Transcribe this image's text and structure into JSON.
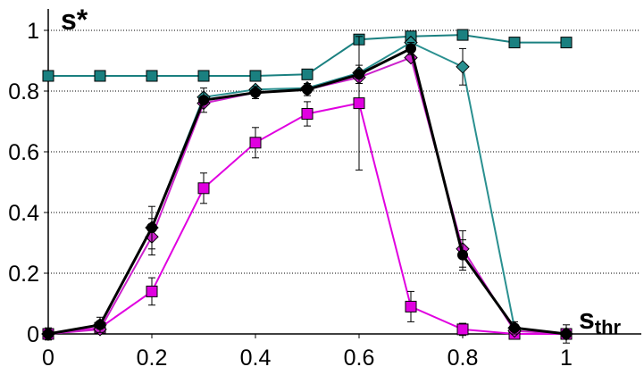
{
  "chart_data": {
    "type": "line",
    "ylabel": "s*",
    "xlabel": {
      "base": "s",
      "subscript": "thr"
    },
    "xlim": [
      0,
      1
    ],
    "ylim": [
      0,
      1
    ],
    "xticks": [
      "0",
      "0.2",
      "0.4",
      "0.6",
      "0.8",
      "1"
    ],
    "yticks": [
      "0",
      "0.2",
      "0.4",
      "0.6",
      "0.8",
      "1"
    ],
    "grid": "horizontal dotted",
    "legend": "none",
    "series": [
      {
        "color": "#1a8080",
        "marker": "square",
        "x": [
          0,
          0.1,
          0.2,
          0.3,
          0.4,
          0.5,
          0.6,
          0.7,
          0.8,
          0.9,
          1.0
        ],
        "y": [
          0.85,
          0.85,
          0.85,
          0.85,
          0.85,
          0.855,
          0.97,
          0.98,
          0.985,
          0.96,
          0.96
        ],
        "err": [
          0,
          0,
          0,
          0,
          0,
          0,
          0,
          0,
          0,
          0,
          0
        ]
      },
      {
        "color": "#2a9090",
        "marker": "diamond",
        "x": [
          0,
          0.1,
          0.2,
          0.3,
          0.4,
          0.5,
          0.6,
          0.7,
          0.8,
          0.9,
          1.0
        ],
        "y": [
          0.0,
          0.03,
          0.35,
          0.78,
          0.805,
          0.81,
          0.86,
          0.96,
          0.88,
          0.02,
          0.0
        ],
        "err": [
          0,
          0,
          0,
          0,
          0,
          0,
          0,
          0,
          0.06,
          0,
          0
        ]
      },
      {
        "color": "#e000e0",
        "marker": "square",
        "x": [
          0,
          0.1,
          0.2,
          0.3,
          0.4,
          0.5,
          0.6,
          0.7,
          0.8,
          0.9,
          1.0
        ],
        "y": [
          0.0,
          0.02,
          0.14,
          0.48,
          0.63,
          0.725,
          0.76,
          0.09,
          0.015,
          0.0,
          0.0
        ],
        "err": [
          0,
          0,
          0.045,
          0.05,
          0.05,
          0.04,
          0.22,
          0.05,
          0.02,
          0,
          0
        ]
      },
      {
        "color": "#cc22cc",
        "marker": "diamond",
        "x": [
          0,
          0.1,
          0.2,
          0.3,
          0.4,
          0.5,
          0.6,
          0.7,
          0.8,
          0.9,
          1.0
        ],
        "y": [
          0.0,
          0.015,
          0.32,
          0.76,
          0.795,
          0.805,
          0.845,
          0.91,
          0.28,
          0.01,
          0.0
        ],
        "err": [
          0,
          0,
          0.06,
          0,
          0,
          0,
          0,
          0,
          0.06,
          0,
          0
        ]
      },
      {
        "color": "#000000",
        "marker": "circle",
        "x": [
          0,
          0.1,
          0.2,
          0.3,
          0.4,
          0.5,
          0.6,
          0.7,
          0.8,
          0.9,
          1.0
        ],
        "y": [
          0.0,
          0.03,
          0.35,
          0.77,
          0.795,
          0.805,
          0.855,
          0.94,
          0.26,
          0.02,
          0.0
        ],
        "err": [
          0.02,
          0.025,
          0.07,
          0.04,
          0.02,
          0.02,
          0.03,
          0.02,
          0.05,
          0.02,
          0.03
        ]
      }
    ]
  }
}
